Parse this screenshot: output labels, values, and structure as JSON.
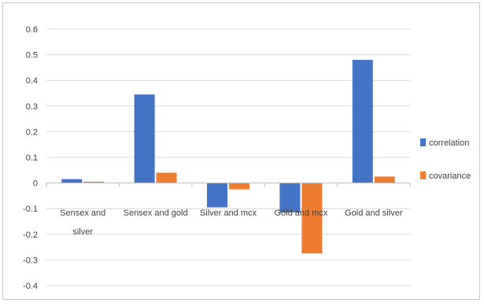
{
  "chart_data": {
    "type": "bar",
    "categories": [
      [
        "Sensex and",
        "silver"
      ],
      [
        "Sensex and gold"
      ],
      [
        "Silver and mcx"
      ],
      [
        "Gold and mcx"
      ],
      [
        "Gold and silver"
      ]
    ],
    "series": [
      {
        "name": "correlation",
        "color": "#4472C4",
        "values": [
          0.015,
          0.345,
          -0.095,
          -0.115,
          0.48
        ]
      },
      {
        "name": "covariance",
        "color": "#ED7D31",
        "values": [
          0.005,
          0.04,
          -0.025,
          -0.275,
          0.025
        ]
      }
    ],
    "ylim": [
      -0.4,
      0.6
    ],
    "yticks": [
      "0.6",
      "0.5",
      "0.4",
      "0.3",
      "0.2",
      "0.1",
      "0",
      "-0.1",
      "-0.2",
      "-0.3",
      "-0.4"
    ],
    "grid": true,
    "legend_position": "right"
  }
}
